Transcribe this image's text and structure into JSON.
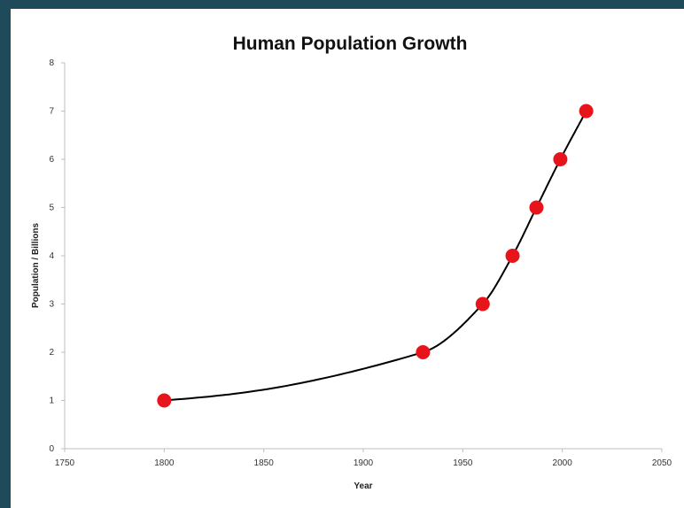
{
  "chart_data": {
    "type": "scatter",
    "title": "Human Population Growth",
    "xlabel": "Year",
    "ylabel": "Population / Billions",
    "xlim": [
      1750,
      2050
    ],
    "ylim": [
      0,
      8
    ],
    "x_ticks": [
      "1750",
      "1800",
      "1850",
      "1900",
      "1950",
      "2000",
      "2050"
    ],
    "y_ticks": [
      "0",
      "1",
      "2",
      "3",
      "4",
      "5",
      "6",
      "7",
      "8"
    ],
    "grid": false,
    "legend": "none",
    "trendline": "smooth curve",
    "series": [
      {
        "x": [
          1800,
          1930,
          1960,
          1975,
          1987,
          1999,
          2012
        ],
        "y": [
          1,
          2,
          3,
          4,
          5,
          6,
          7
        ],
        "marker_color": "#e8141c",
        "line_color": "#000000"
      }
    ]
  },
  "colors": {
    "frame": "#1f4a5a",
    "panel": "#ffffff",
    "axis": "#bfbfbf"
  }
}
